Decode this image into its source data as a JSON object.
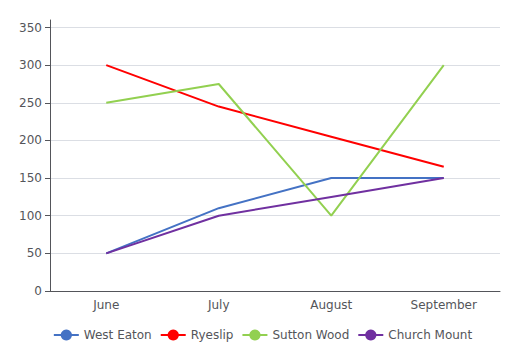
{
  "chart_data": {
    "type": "line",
    "categories": [
      "June",
      "July",
      "August",
      "September"
    ],
    "series": [
      {
        "name": "West Eaton",
        "color": "#4472C4",
        "values": [
          50,
          110,
          150,
          150
        ]
      },
      {
        "name": "Ryeslip",
        "color": "#FF0000",
        "values": [
          300,
          245,
          205,
          165
        ]
      },
      {
        "name": "Sutton Wood",
        "color": "#92D050",
        "values": [
          250,
          275,
          100,
          300
        ]
      },
      {
        "name": "Church Mount",
        "color": "#7030A0",
        "values": [
          50,
          100,
          125,
          150
        ]
      }
    ],
    "ylim": [
      0,
      360
    ],
    "yticks": [
      0,
      50,
      100,
      150,
      200,
      250,
      300,
      350
    ],
    "grid": true,
    "legend": "bottom"
  }
}
